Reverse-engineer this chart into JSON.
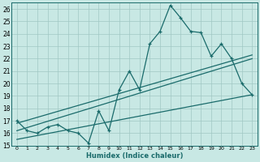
{
  "xlabel": "Humidex (Indice chaleur)",
  "bg_color": "#c8e8e4",
  "grid_color": "#a0c8c4",
  "line_color": "#1a6b6b",
  "spine_color": "#1a6b6b",
  "xlim": [
    -0.5,
    23.5
  ],
  "ylim": [
    15,
    26.5
  ],
  "x_ticks": [
    0,
    1,
    2,
    3,
    4,
    5,
    6,
    7,
    8,
    9,
    10,
    11,
    12,
    13,
    14,
    15,
    16,
    17,
    18,
    19,
    20,
    21,
    22,
    23
  ],
  "y_ticks": [
    15,
    16,
    17,
    18,
    19,
    20,
    21,
    22,
    23,
    24,
    25,
    26
  ],
  "main_data_x": [
    0,
    1,
    2,
    3,
    4,
    5,
    6,
    7,
    8,
    9,
    10,
    11,
    12,
    13,
    14,
    15,
    16,
    17,
    18,
    19,
    20,
    21,
    22,
    23
  ],
  "main_data_y": [
    17.0,
    16.2,
    16.0,
    16.5,
    16.7,
    16.2,
    16.0,
    15.2,
    17.8,
    16.2,
    19.5,
    21.0,
    19.5,
    23.2,
    24.2,
    26.3,
    25.3,
    24.2,
    24.1,
    22.2,
    23.2,
    22.0,
    20.0,
    19.1
  ],
  "line1_x": [
    0,
    23
  ],
  "line1_y": [
    16.8,
    22.3
  ],
  "line2_x": [
    0,
    23
  ],
  "line2_y": [
    16.2,
    22.0
  ],
  "line3_x": [
    0,
    23
  ],
  "line3_y": [
    15.5,
    19.1
  ]
}
